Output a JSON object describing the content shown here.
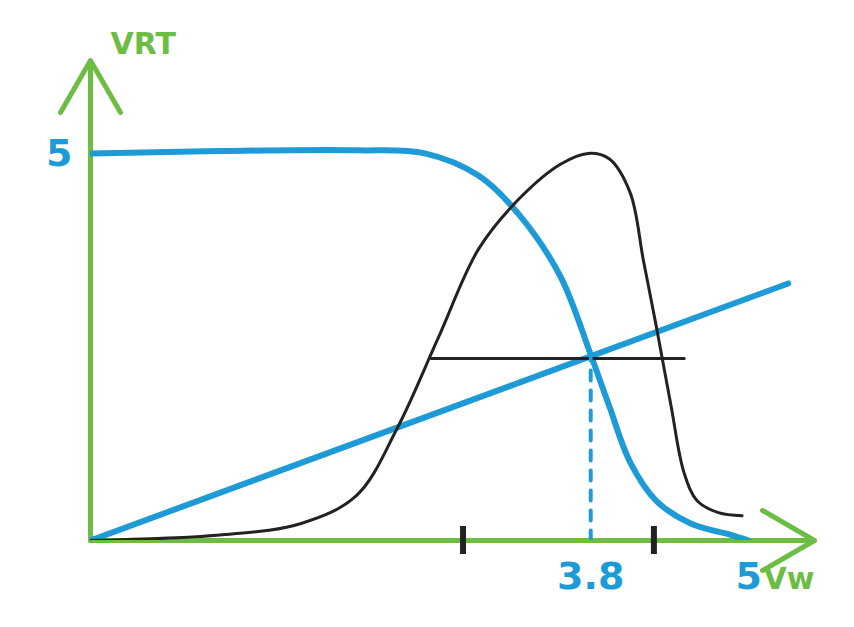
{
  "chart_data": {
    "type": "line",
    "x_label": "Vw",
    "y_label": "VRT",
    "xlim": [
      0,
      5.5
    ],
    "ylim": [
      0,
      6.2
    ],
    "xticks": [
      3.8,
      5
    ],
    "yticks": [
      5
    ],
    "series": [
      {
        "color": "#1e9bd7",
        "line_style": "solid",
        "x": [
          0,
          0.98,
          2.02,
          2.54,
          2.95,
          3.26,
          3.57,
          3.8,
          3.94,
          4.1,
          4.3,
          4.56,
          4.87,
          5.0
        ],
        "values": [
          5.0,
          5.03,
          5.04,
          5.0,
          4.71,
          4.2,
          3.41,
          2.4,
          1.74,
          1.01,
          0.51,
          0.22,
          0.07,
          0
        ]
      },
      {
        "color": "#1e9bd7",
        "line_style": "solid",
        "x": [
          0,
          5.3
        ],
        "values": [
          0,
          3.32
        ]
      },
      {
        "color": "#222222",
        "line_style": "solid",
        "x": [
          0,
          0.98,
          1.6,
          2.02,
          2.33,
          2.64,
          2.95,
          3.26,
          3.57,
          3.78,
          3.94,
          4.1,
          4.2,
          4.3,
          4.41,
          4.51,
          4.61,
          4.77,
          4.95
        ],
        "values": [
          0,
          0.07,
          0.22,
          0.58,
          1.45,
          2.61,
          3.77,
          4.42,
          4.86,
          5.0,
          4.93,
          4.49,
          3.62,
          2.75,
          1.74,
          0.87,
          0.51,
          0.36,
          0.32
        ]
      },
      {
        "color": "#222222",
        "line_style": "solid",
        "x": [
          2.59,
          4.51
        ],
        "values": [
          2.35,
          2.35
        ]
      },
      {
        "color": "#1e9bd7",
        "line_style": "dashed",
        "x": [
          3.8,
          3.8
        ],
        "values": [
          0,
          2.35
        ]
      },
      {
        "type": "tick",
        "color": "#222222",
        "x": [
          2.83,
          4.28
        ]
      }
    ]
  }
}
